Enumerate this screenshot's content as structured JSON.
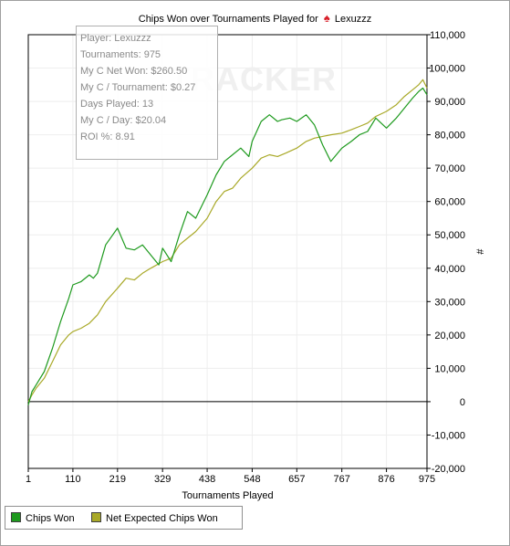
{
  "title": {
    "prefix": "Chips Won over Tournaments Played for",
    "player": "Lexuzzz",
    "spade_icon": "spade-icon"
  },
  "watermark": "TRACKER",
  "stats": [
    "Player: Lexuzzz",
    "Tournaments: 975",
    "My C Net Won: $260.50",
    "My C / Tournament: $0.27",
    "Days Played: 13",
    "My C / Day: $20.04",
    "ROI %: 8.91"
  ],
  "legend": {
    "items": [
      {
        "label": "Chips Won",
        "color": "#1e9a1e"
      },
      {
        "label": "Net Expected Chips Won",
        "color": "#a9a928"
      }
    ]
  },
  "chart_data": {
    "type": "line",
    "title": "Chips Won over Tournaments Played for Lexuzzz",
    "xlabel": "Tournaments Played",
    "ylabel": "#",
    "xlim": [
      1,
      975
    ],
    "ylim": [
      -20000,
      110000
    ],
    "x_ticks": [
      1,
      110,
      219,
      329,
      438,
      548,
      657,
      767,
      876,
      975
    ],
    "y_ticks": [
      -20000,
      -10000,
      0,
      10000,
      20000,
      30000,
      40000,
      50000,
      60000,
      70000,
      80000,
      90000,
      100000,
      110000
    ],
    "y_tick_labels": [
      "-20,000",
      "-10,000",
      "0",
      "10,000",
      "20,000",
      "30,000",
      "40,000",
      "50,000",
      "60,000",
      "70,000",
      "80,000",
      "90,000",
      "100,000",
      "110,000"
    ],
    "grid": true,
    "legend_position": "bottom-left",
    "series": [
      {
        "name": "Chips Won",
        "color": "#1e9a1e",
        "x": [
          1,
          10,
          20,
          40,
          60,
          80,
          100,
          110,
          130,
          150,
          160,
          170,
          190,
          219,
          240,
          260,
          280,
          300,
          320,
          329,
          350,
          370,
          390,
          410,
          438,
          460,
          480,
          500,
          520,
          540,
          548,
          570,
          590,
          610,
          620,
          640,
          657,
          680,
          700,
          720,
          740,
          767,
          790,
          810,
          830,
          850,
          876,
          900,
          920,
          940,
          955,
          965,
          975
        ],
        "y": [
          -1000,
          3000,
          5000,
          9000,
          16000,
          24000,
          31000,
          35000,
          36000,
          38000,
          37000,
          38500,
          47000,
          52000,
          46000,
          45500,
          47000,
          44000,
          41000,
          46000,
          42000,
          50000,
          57000,
          55000,
          62000,
          68000,
          72000,
          74000,
          76000,
          73500,
          78000,
          84000,
          86000,
          84000,
          84500,
          85000,
          84000,
          86000,
          83000,
          77000,
          72000,
          76000,
          78000,
          80000,
          81000,
          85000,
          82000,
          85000,
          88000,
          91000,
          93000,
          94000,
          92000
        ]
      },
      {
        "name": "Net Expected Chips Won",
        "color": "#a9a928",
        "x": [
          1,
          10,
          20,
          40,
          60,
          80,
          100,
          110,
          130,
          150,
          170,
          190,
          219,
          240,
          260,
          280,
          300,
          329,
          350,
          370,
          390,
          410,
          438,
          460,
          480,
          500,
          520,
          548,
          570,
          590,
          610,
          630,
          657,
          680,
          700,
          720,
          740,
          767,
          790,
          810,
          830,
          850,
          876,
          900,
          920,
          940,
          955,
          965,
          975
        ],
        "y": [
          0,
          2000,
          4000,
          7000,
          12000,
          17000,
          20000,
          21000,
          22000,
          23500,
          26000,
          30000,
          34000,
          37000,
          36500,
          38500,
          40000,
          42000,
          43000,
          47000,
          49000,
          51000,
          55000,
          60000,
          63000,
          64000,
          67000,
          70000,
          73000,
          74000,
          73500,
          74500,
          76000,
          78000,
          79000,
          79500,
          80000,
          80500,
          81500,
          82500,
          83500,
          85500,
          87000,
          89000,
          91500,
          93500,
          95000,
          96500,
          94000
        ]
      }
    ]
  }
}
